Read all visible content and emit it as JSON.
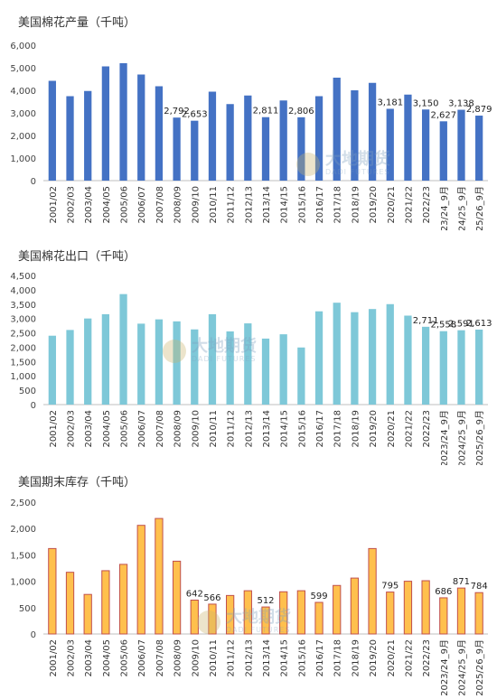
{
  "watermark": {
    "cn": "大地期货",
    "en": "DADI FUTURES"
  },
  "chart_data": [
    {
      "type": "bar",
      "title": "美国棉花产量（千吨）",
      "color": "#4472C4",
      "ylim": [
        0,
        6000
      ],
      "yticks": [
        "0",
        "1,000",
        "2,000",
        "3,000",
        "4,000",
        "5,000",
        "6,000"
      ],
      "categories": [
        "2001/02",
        "2002/03",
        "2003/04",
        "2004/05",
        "2005/06",
        "2006/07",
        "2007/08",
        "2008/09",
        "2009/10",
        "2010/11",
        "2011/12",
        "2012/13",
        "2013/14",
        "2014/15",
        "2015/16",
        "2016/17",
        "2017/18",
        "2018/19",
        "2019/20",
        "2020/21",
        "2021/22",
        "2022/23",
        "2023/24_9月",
        "2024/25_9月",
        "2025/26_9月"
      ],
      "values": [
        4420,
        3740,
        3970,
        5060,
        5200,
        4700,
        4180,
        2792,
        2653,
        3940,
        3390,
        3770,
        2811,
        3550,
        2806,
        3740,
        4560,
        4000,
        4330,
        3181,
        3810,
        3150,
        2627,
        3138,
        2879
      ],
      "labels": [
        "",
        "",
        "",
        "",
        "",
        "",
        "",
        "2,792",
        "2,653",
        "",
        "",
        "",
        "2,811",
        "",
        "2,806",
        "",
        "",
        "",
        "",
        "3,181",
        "",
        "3,150",
        "2,627",
        "3,138",
        "2,879"
      ]
    },
    {
      "type": "bar",
      "title": "美国棉花出口（千吨）",
      "color": "#7EC8D8",
      "ylim": [
        0,
        4500
      ],
      "yticks": [
        "0",
        "500",
        "1,000",
        "1,500",
        "2,000",
        "2,500",
        "3,000",
        "3,500",
        "4,000",
        "4,500"
      ],
      "categories": [
        "2001/02",
        "2002/03",
        "2003/04",
        "2004/05",
        "2005/06",
        "2006/07",
        "2007/08",
        "2008/09",
        "2009/10",
        "2010/11",
        "2011/12",
        "2012/13",
        "2013/14",
        "2014/15",
        "2015/16",
        "2016/17",
        "2017/18",
        "2018/19",
        "2019/20",
        "2020/21",
        "2021/22",
        "2022/23",
        "2023/24_9月",
        "2024/25_9月",
        "2025/26_9月"
      ],
      "values": [
        2400,
        2600,
        3000,
        3150,
        3850,
        2820,
        2970,
        2900,
        2620,
        3150,
        2550,
        2830,
        2300,
        2450,
        1990,
        3250,
        3550,
        3220,
        3330,
        3500,
        3100,
        2711,
        2558,
        2591,
        2613
      ],
      "labels": [
        "",
        "",
        "",
        "",
        "",
        "",
        "",
        "",
        "",
        "",
        "",
        "",
        "",
        "",
        "",
        "",
        "",
        "",
        "",
        "",
        "",
        "2,711",
        "2,558",
        "2,591",
        "2,613"
      ]
    },
    {
      "type": "bar",
      "title": "美国期末库存（千吨）",
      "color": "#FFC04D",
      "edge": "#C0504D",
      "ylim": [
        0,
        2500
      ],
      "yticks": [
        "0",
        "500",
        "1,000",
        "1,500",
        "2,000",
        "2,500"
      ],
      "categories": [
        "2001/02",
        "2002/03",
        "2003/04",
        "2004/05",
        "2005/06",
        "2006/07",
        "2007/08",
        "2008/09",
        "2009/10",
        "2010/11",
        "2011/12",
        "2012/13",
        "2013/14",
        "2014/15",
        "2015/16",
        "2016/17",
        "2017/18",
        "2018/19",
        "2019/20",
        "2020/21",
        "2021/22",
        "2022/23",
        "2023/24_9月",
        "2024/25_9月",
        "2025/26_9月"
      ],
      "values": [
        1620,
        1170,
        750,
        1200,
        1320,
        2060,
        2190,
        1380,
        642,
        566,
        730,
        820,
        512,
        800,
        820,
        599,
        920,
        1060,
        1620,
        795,
        1000,
        1010,
        686,
        871,
        784
      ],
      "labels": [
        "",
        "",
        "",
        "",
        "",
        "",
        "",
        "",
        "642",
        "566",
        "",
        "",
        "512",
        "",
        "",
        "599",
        "",
        "",
        "",
        "795",
        "",
        "",
        "686",
        "871",
        "784"
      ]
    }
  ]
}
